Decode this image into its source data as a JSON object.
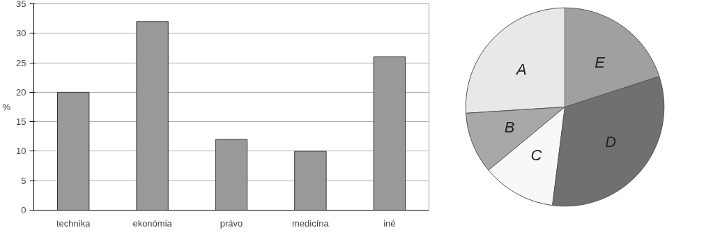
{
  "chart_data": [
    {
      "type": "bar",
      "ylabel": "%",
      "categories": [
        "technika",
        "ekonómia",
        "právo",
        "medicína",
        "iné"
      ],
      "values": [
        20,
        32,
        12,
        10,
        26
      ],
      "color": "#999999",
      "ylim": [
        0,
        35
      ],
      "yticks": [
        0,
        5,
        10,
        15,
        20,
        25,
        30,
        35
      ],
      "grid": "y"
    },
    {
      "type": "pie",
      "categories": [
        "A",
        "B",
        "C",
        "D",
        "E"
      ],
      "values": [
        26,
        10,
        12,
        32,
        20
      ],
      "colors": [
        "#e8e8e8",
        "#a8a8a8",
        "#f8f8f8",
        "#707070",
        "#a0a0a0"
      ]
    }
  ]
}
